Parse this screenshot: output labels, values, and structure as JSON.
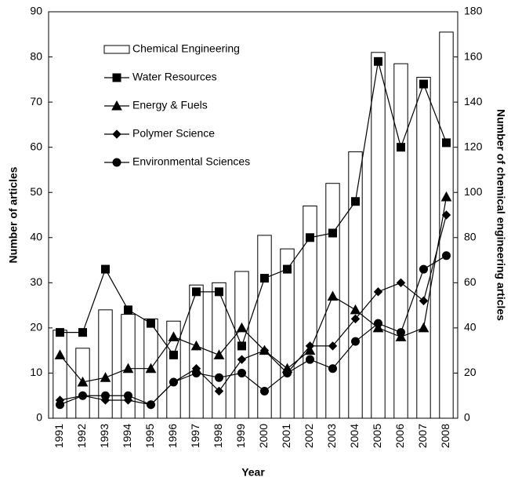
{
  "chart_data": {
    "type": "combo",
    "x_label": "Year",
    "y_label": "Number of articles",
    "y2_label": "Number of chemical engineering articles",
    "categories": [
      "1991",
      "1992",
      "1993",
      "1994",
      "1995",
      "1996",
      "1997",
      "1998",
      "1999",
      "2000",
      "2001",
      "2002",
      "2003",
      "2004",
      "2005",
      "2006",
      "2007",
      "2008"
    ],
    "ylim": [
      0,
      90
    ],
    "yticks": [
      0,
      10,
      20,
      30,
      40,
      50,
      60,
      70,
      80,
      90
    ],
    "y2lim": [
      0,
      180
    ],
    "y2ticks": [
      0,
      20,
      40,
      60,
      80,
      100,
      120,
      140,
      160,
      180
    ],
    "grid": false,
    "legend": "upper left",
    "series": [
      {
        "name": "Chemical Engineering",
        "type": "bar",
        "axis": "y2",
        "color": "#000000",
        "values": [
          39,
          31,
          48,
          46,
          44,
          43,
          59,
          60,
          65,
          81,
          75,
          94,
          104,
          118,
          162,
          157,
          151,
          171
        ]
      },
      {
        "name": "Water Resources",
        "type": "line",
        "marker": "square",
        "color": "#000000",
        "values": [
          19,
          19,
          33,
          24,
          21,
          14,
          28,
          28,
          16,
          31,
          33,
          40,
          41,
          48,
          79,
          60,
          74,
          61
        ]
      },
      {
        "name": "Energy & Fuels",
        "type": "line",
        "marker": "triangle",
        "color": "#000000",
        "values": [
          14,
          8,
          9,
          11,
          11,
          18,
          16,
          14,
          20,
          15,
          11,
          15,
          27,
          24,
          20,
          18,
          20,
          49
        ]
      },
      {
        "name": "Polymer Science",
        "type": "line",
        "marker": "diamond",
        "color": "#000000",
        "values": [
          4,
          5,
          4,
          4,
          3,
          8,
          11,
          6,
          13,
          15,
          10,
          16,
          16,
          22,
          28,
          30,
          26,
          45
        ]
      },
      {
        "name": "Environmental Sciences",
        "type": "line",
        "marker": "circle",
        "color": "#000000",
        "values": [
          3,
          5,
          5,
          5,
          3,
          8,
          10,
          9,
          10,
          6,
          10,
          13,
          11,
          17,
          21,
          19,
          33,
          36
        ]
      }
    ]
  }
}
